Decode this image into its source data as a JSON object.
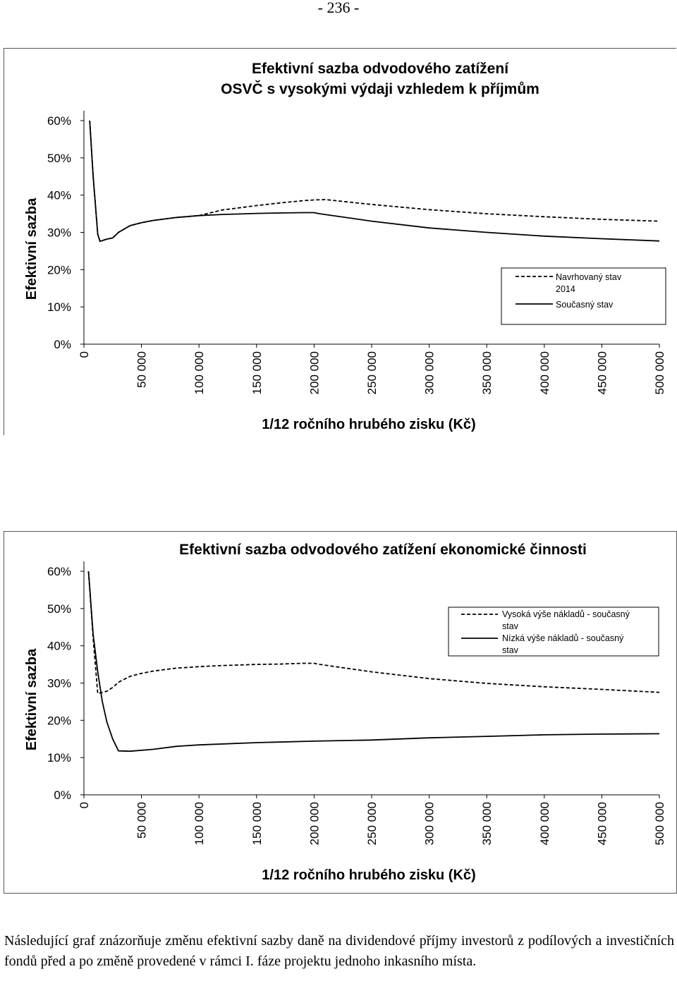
{
  "page_number": "- 236 -",
  "footnote": "Následující graf znázorňuje změnu efektivní sazby daně na dividendové příjmy investorů z podílových a investičních fondů před a po změně provedené v rámci I. fáze projektu jednoho inkasního místa.",
  "chart_data": [
    {
      "type": "line",
      "title_lines": [
        "Efektivní sazba odvodového zatížení",
        "OSVČ s vysokými výdaji vzhledem k příjmům"
      ],
      "xlabel": "1/12 ročního hrubého zisku (Kč)",
      "ylabel": "Efektivní sazba",
      "xlim": [
        0,
        500000
      ],
      "ylim": [
        0,
        60
      ],
      "x_tick_labels": [
        "0",
        "50 000",
        "100 000",
        "150 000",
        "200 000",
        "250 000",
        "300 000",
        "350 000",
        "400 000",
        "450 000",
        "500 000"
      ],
      "y_tick_labels": [
        "0%",
        "10%",
        "20%",
        "30%",
        "40%",
        "50%",
        "60%"
      ],
      "legend_position": "right",
      "grid": false,
      "series": [
        {
          "name": "Navrhovaný stav 2014",
          "style": "dashed",
          "x": [
            5000,
            8000,
            12000,
            14000,
            20000,
            25000,
            30000,
            40000,
            50000,
            60000,
            80000,
            100000,
            120000,
            150000,
            170000,
            190000,
            200000,
            210000,
            250000,
            300000,
            350000,
            400000,
            450000,
            500000
          ],
          "y": [
            60,
            45,
            29.5,
            27.6,
            28.2,
            28.5,
            30,
            31.8,
            32.6,
            33.2,
            34,
            34.5,
            36,
            37.2,
            37.9,
            38.5,
            38.7,
            38.8,
            37.5,
            36.1,
            35,
            34.2,
            33.5,
            33
          ]
        },
        {
          "name": "Současný stav",
          "style": "solid",
          "x": [
            5000,
            8000,
            12000,
            14000,
            20000,
            25000,
            30000,
            40000,
            50000,
            60000,
            80000,
            100000,
            120000,
            150000,
            170000,
            190000,
            200000,
            205000,
            250000,
            300000,
            350000,
            400000,
            450000,
            500000
          ],
          "y": [
            60,
            45,
            29.5,
            27.6,
            28.2,
            28.5,
            30,
            31.8,
            32.6,
            33.2,
            34,
            34.5,
            34.8,
            35.1,
            35.2,
            35.3,
            35.3,
            35,
            33,
            31.2,
            30,
            29,
            28.3,
            27.7
          ]
        }
      ]
    },
    {
      "type": "line",
      "title_lines": [
        "Efektivní sazba odvodového zatížení ekonomické činnosti"
      ],
      "xlabel": "1/12 ročního hrubého zisku (Kč)",
      "ylabel": "Efektivní sazba",
      "xlim": [
        0,
        500000
      ],
      "ylim": [
        0,
        60
      ],
      "x_tick_labels": [
        "0",
        "50 000",
        "100 000",
        "150 000",
        "200 000",
        "250 000",
        "300 000",
        "350 000",
        "400 000",
        "450 000",
        "500 000"
      ],
      "y_tick_labels": [
        "0%",
        "10%",
        "20%",
        "30%",
        "40%",
        "50%",
        "60%"
      ],
      "legend_position": "top-right",
      "grid": false,
      "series": [
        {
          "name": "Vysoká výše nákladů - současný stav",
          "style": "dashed",
          "x": [
            4000,
            8000,
            12000,
            20000,
            25000,
            30000,
            40000,
            50000,
            60000,
            80000,
            100000,
            120000,
            150000,
            170000,
            190000,
            200000,
            205000,
            250000,
            300000,
            350000,
            400000,
            450000,
            500000
          ],
          "y": [
            60,
            42,
            27.2,
            27.8,
            28.8,
            30.2,
            31.8,
            32.6,
            33.2,
            34,
            34.4,
            34.7,
            35,
            35.1,
            35.3,
            35.3,
            35,
            33,
            31.2,
            29.9,
            29,
            28.3,
            27.5
          ]
        },
        {
          "name": "Nízká výše nákladů - současný stav",
          "style": "solid",
          "x": [
            4000,
            8000,
            12000,
            16000,
            20000,
            25000,
            30000,
            40000,
            60000,
            80000,
            100000,
            150000,
            200000,
            250000,
            300000,
            350000,
            400000,
            450000,
            500000
          ],
          "y": [
            60,
            43,
            33,
            25,
            19.5,
            15,
            11.8,
            11.7,
            12.2,
            13,
            13.4,
            14,
            14.4,
            14.7,
            15.3,
            15.7,
            16.1,
            16.3,
            16.4
          ]
        }
      ]
    }
  ]
}
